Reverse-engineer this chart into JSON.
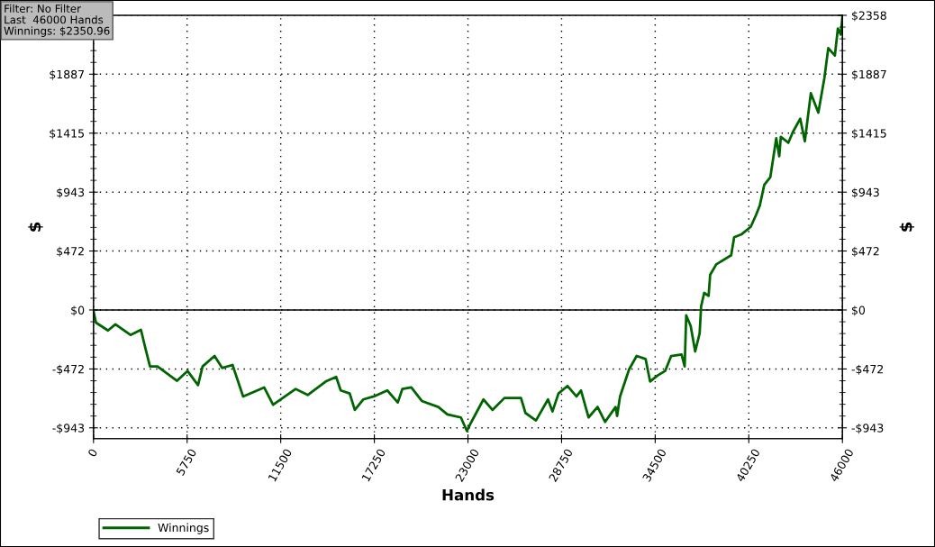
{
  "chart_data": {
    "type": "line",
    "xlabel": "Hands",
    "ylabel": "$",
    "y2label": "$",
    "annotations": [
      "Filter: No Filter\nLast  46000 Hands\nWinnings: $2350.96"
    ],
    "x": [
      0,
      150,
      890,
      1345,
      2270,
      2915,
      3190,
      3470,
      3930,
      5130,
      5775,
      6420,
      6700,
      7435,
      7900,
      8540,
      9190,
      10480,
      11030,
      12415,
      13155,
      14265,
      14905,
      15185,
      15735,
      16050,
      16565,
      17215,
      18045,
      18690,
      18970,
      19520,
      20165,
      21180,
      21735,
      22565,
      22935,
      23210,
      23950,
      24505,
      25240,
      26255,
      26530,
      27175,
      27915,
      28190,
      28560,
      29115,
      29665,
      29945,
      30405,
      30960,
      31420,
      32065,
      32160,
      32340,
      32895,
      33360,
      33910,
      34185,
      34650,
      35110,
      35480,
      36120,
      36310,
      36405,
      36680,
      36955,
      37230,
      37320,
      37510,
      37780,
      37875,
      38250,
      39165,
      39350,
      39810,
      40365,
      40695,
      40920,
      41200,
      41570,
      41935,
      42120,
      42215,
      42675,
      42950,
      43410,
      43690,
      44060,
      44520,
      44890,
      45130,
      45535,
      45720,
      45900,
      46000
    ],
    "series": [
      {
        "name": "Winnings",
        "color": "#006400",
        "values": [
          -7,
          -101,
          -164,
          -115,
          -200,
          -159,
          -308,
          -452,
          -452,
          -567,
          -488,
          -601,
          -452,
          -368,
          -464,
          -440,
          -692,
          -620,
          -759,
          -632,
          -680,
          -572,
          -536,
          -644,
          -668,
          -800,
          -716,
          -692,
          -644,
          -740,
          -632,
          -620,
          -728,
          -776,
          -836,
          -860,
          -968,
          -896,
          -716,
          -800,
          -704,
          -704,
          -824,
          -884,
          -716,
          -812,
          -668,
          -608,
          -692,
          -644,
          -860,
          -776,
          -896,
          -776,
          -848,
          -692,
          -476,
          -368,
          -392,
          -572,
          -524,
          -488,
          -368,
          -356,
          -452,
          -43,
          -128,
          -332,
          -187,
          29,
          137,
          113,
          281,
          365,
          438,
          582,
          606,
          665,
          761,
          834,
          1002,
          1062,
          1374,
          1230,
          1386,
          1338,
          1422,
          1531,
          1350,
          1735,
          1579,
          1855,
          2096,
          2036,
          2252,
          2204,
          2351
        ]
      }
    ],
    "xlim": [
      0,
      46000
    ],
    "xticks": [
      0,
      5750,
      11500,
      17250,
      23000,
      28750,
      34500,
      40250,
      46000
    ],
    "ylim": [
      -1030,
      2358
    ],
    "yticks": [
      {
        "value": -943,
        "label": "-$943"
      },
      {
        "value": -472,
        "label": "-$472"
      },
      {
        "value": 0,
        "label": "$0"
      },
      {
        "value": 472,
        "label": "$472"
      },
      {
        "value": 943,
        "label": "$943"
      },
      {
        "value": 1415,
        "label": "$1415"
      },
      {
        "value": 1887,
        "label": "$1887"
      },
      {
        "value": 2358,
        "label": null
      }
    ],
    "y2lim": [
      -1030,
      2358
    ],
    "y2ticks": [
      {
        "value": -943,
        "label": "-$943"
      },
      {
        "value": -472,
        "label": "-$472"
      },
      {
        "value": 0,
        "label": "$0"
      },
      {
        "value": 472,
        "label": "$472"
      },
      {
        "value": 943,
        "label": "$943"
      },
      {
        "value": 1415,
        "label": "$1415"
      },
      {
        "value": 1887,
        "label": "$1887"
      },
      {
        "value": 2358,
        "label": "$2358"
      }
    ],
    "ref_lines": [
      {
        "axis": "y",
        "value": 0,
        "color": "#000000",
        "line_style": "solid"
      }
    ],
    "grid": true,
    "legend": "bottom left",
    "marker": "none",
    "line_style": "solid"
  }
}
